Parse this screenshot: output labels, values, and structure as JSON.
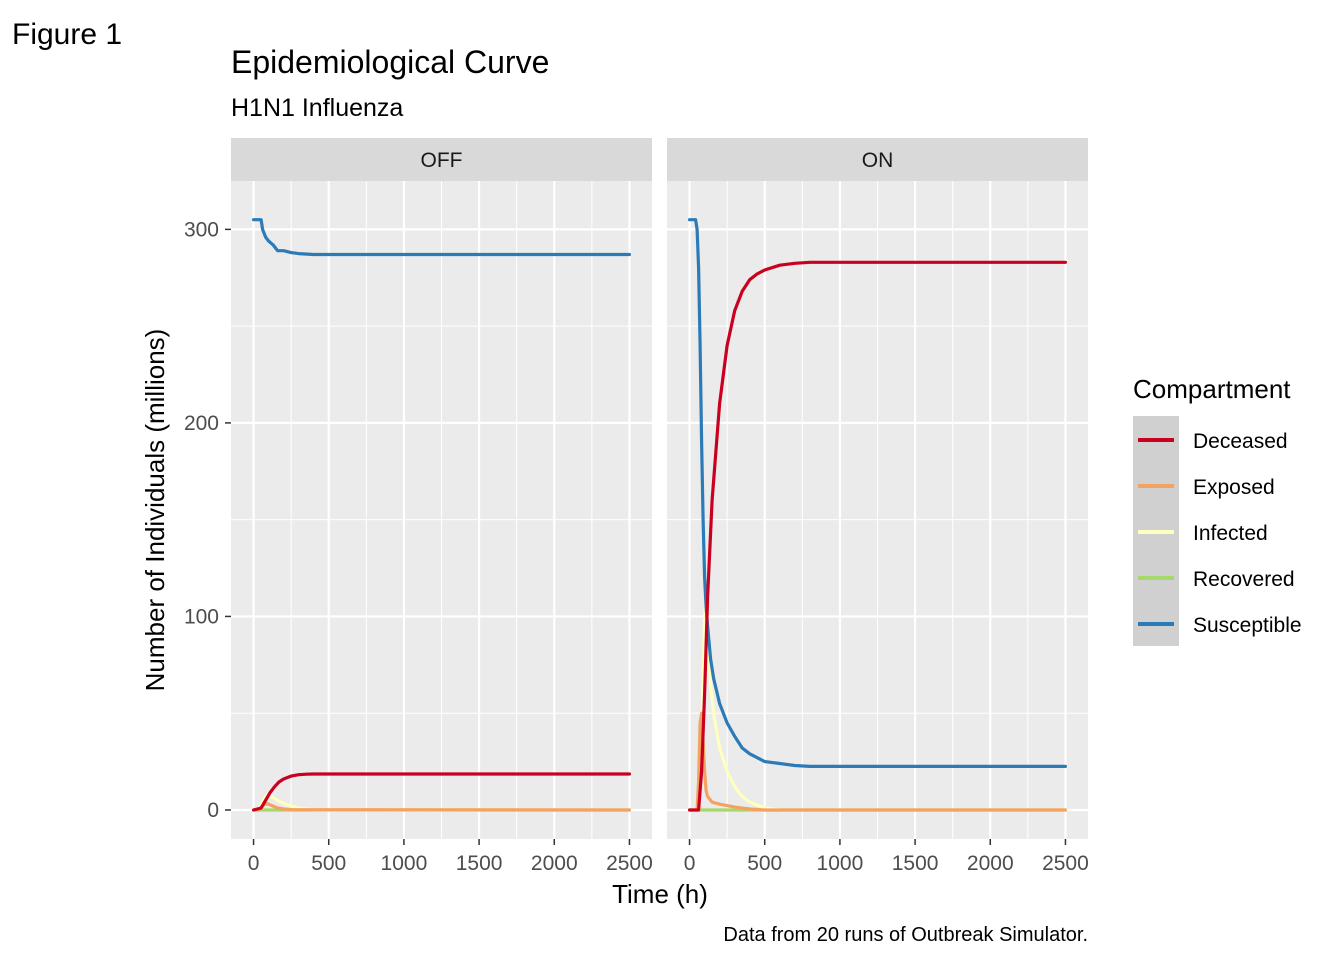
{
  "figure_label": "Figure 1",
  "chart_data": {
    "type": "line",
    "title": "Epidemiological Curve",
    "subtitle": "H1N1 Influenza",
    "xlabel": "Time (h)",
    "ylabel": "Number of Individuals (millions)",
    "caption": "Data from 20 runs of Outbreak Simulator.",
    "xlim": [
      -150,
      2650
    ],
    "ylim": [
      -15,
      325
    ],
    "x_ticks": [
      0,
      500,
      1000,
      1500,
      2000,
      2500
    ],
    "x_tick_labels": [
      "0",
      "500",
      "1000",
      "1500",
      "2000",
      "2500"
    ],
    "y_ticks": [
      0,
      100,
      200,
      300
    ],
    "y_tick_labels": [
      "0",
      "100",
      "200",
      "300"
    ],
    "grid": true,
    "legend": {
      "title": "Compartment",
      "position": "right",
      "entries": [
        {
          "label": "Deceased",
          "color": "#ca0020"
        },
        {
          "label": "Exposed",
          "color": "#f4a261"
        },
        {
          "label": "Infected",
          "color": "#ffffbf"
        },
        {
          "label": "Recovered",
          "color": "#a6d96a"
        },
        {
          "label": "Susceptible",
          "color": "#2c7bb6"
        }
      ]
    },
    "panels": [
      {
        "strip": "OFF",
        "series": [
          {
            "name": "Susceptible",
            "color": "#2c7bb6",
            "x": [
              0,
              50,
              60,
              80,
              100,
              130,
              160,
              200,
              250,
              300,
              400,
              600,
              1000,
              1500,
              2000,
              2500
            ],
            "y": [
              305,
              305,
              300,
              296,
              294,
              292,
              289,
              289,
              288,
              287.5,
              287,
              287,
              287,
              287,
              287,
              287
            ]
          },
          {
            "name": "Deceased",
            "color": "#ca0020",
            "x": [
              0,
              50,
              80,
              110,
              140,
              170,
              200,
              250,
              300,
              350,
              400,
              600,
              1000,
              1500,
              2000,
              2500
            ],
            "y": [
              0,
              1,
              5,
              9,
              12,
              14.5,
              16,
              17.5,
              18.2,
              18.5,
              18.6,
              18.6,
              18.6,
              18.6,
              18.6,
              18.6
            ]
          },
          {
            "name": "Exposed",
            "color": "#f4a261",
            "x": [
              0,
              40,
              60,
              80,
              100,
              130,
              160,
              200,
              250,
              2500
            ],
            "y": [
              0,
              0.5,
              2,
              3.5,
              3,
              2,
              1,
              0.5,
              0.2,
              0
            ]
          },
          {
            "name": "Infected",
            "color": "#ffffbf",
            "x": [
              0,
              40,
              60,
              80,
              100,
              130,
              160,
              200,
              250,
              300,
              350,
              400,
              2500
            ],
            "y": [
              0,
              1,
              4,
              7,
              8,
              6.5,
              5,
              3.5,
              2,
              1,
              0.5,
              0.2,
              0
            ]
          },
          {
            "name": "Recovered",
            "color": "#a6d96a",
            "x": [
              0,
              2500
            ],
            "y": [
              0,
              0
            ]
          }
        ]
      },
      {
        "strip": "ON",
        "series": [
          {
            "name": "Susceptible",
            "color": "#2c7bb6",
            "x": [
              0,
              40,
              50,
              60,
              70,
              80,
              90,
              100,
              110,
              120,
              140,
              160,
              200,
              250,
              300,
              350,
              400,
              450,
              500,
              600,
              700,
              800,
              1000,
              1500,
              2000,
              2500
            ],
            "y": [
              305,
              305,
              300,
              280,
              240,
              190,
              150,
              120,
              105,
              95,
              78,
              68,
              55,
              45,
              38,
              32,
              29,
              27,
              25,
              24,
              23,
              22.5,
              22.5,
              22.5,
              22.5,
              22.5
            ]
          },
          {
            "name": "Deceased",
            "color": "#ca0020",
            "x": [
              0,
              60,
              80,
              100,
              120,
              150,
              200,
              250,
              300,
              350,
              400,
              450,
              500,
              600,
              700,
              800,
              1000,
              1500,
              2000,
              2500
            ],
            "y": [
              0,
              0,
              20,
              60,
              110,
              160,
              210,
              240,
              258,
              268,
              274,
              277,
              279,
              281.5,
              282.5,
              283,
              283,
              283,
              283,
              283
            ]
          },
          {
            "name": "Exposed",
            "color": "#f4a261",
            "x": [
              0,
              50,
              60,
              70,
              80,
              90,
              100,
              110,
              120,
              150,
              200,
              300,
              400,
              500,
              2500
            ],
            "y": [
              0,
              0,
              15,
              45,
              50,
              35,
              20,
              10,
              7,
              4,
              3,
              1.5,
              0.5,
              0,
              0
            ]
          },
          {
            "name": "Infected",
            "color": "#ffffbf",
            "x": [
              0,
              60,
              80,
              100,
              110,
              120,
              140,
              160,
              200,
              250,
              300,
              350,
              400,
              500,
              600,
              2500
            ],
            "y": [
              0,
              0,
              40,
              100,
              110,
              90,
              65,
              50,
              32,
              20,
              12,
              7,
              4,
              1,
              0,
              0
            ]
          },
          {
            "name": "Recovered",
            "color": "#a6d96a",
            "x": [
              0,
              2500
            ],
            "y": [
              0,
              0
            ]
          }
        ]
      }
    ]
  }
}
